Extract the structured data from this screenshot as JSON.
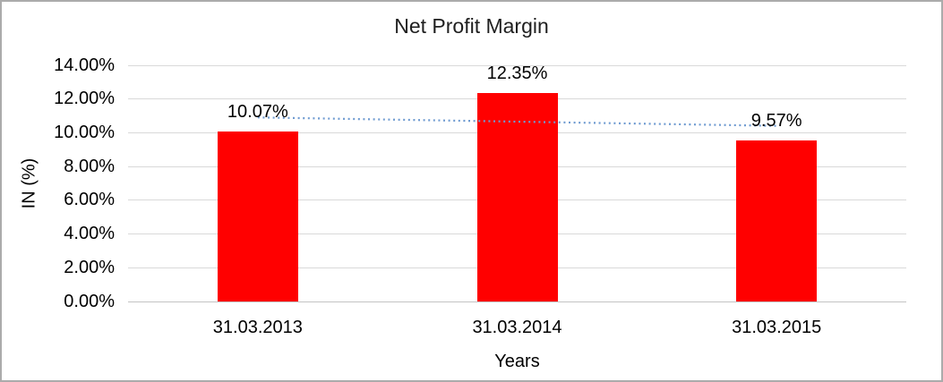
{
  "chart_data": {
    "type": "bar",
    "title": "Net Profit Margin",
    "xlabel": "Years",
    "ylabel": "IN (%)",
    "categories": [
      "31.03.2013",
      "31.03.2014",
      "31.03.2015"
    ],
    "values": [
      10.07,
      12.35,
      9.57
    ],
    "value_labels": [
      "10.07%",
      "12.35%",
      "9.57%"
    ],
    "ylim": [
      0,
      14
    ],
    "ytick_step": 2,
    "ytick_labels": [
      "0.00%",
      "2.00%",
      "4.00%",
      "6.00%",
      "8.00%",
      "10.00%",
      "12.00%",
      "14.00%"
    ],
    "grid": true,
    "legend": false,
    "bar_color": "#ff0000",
    "gridline_color": "#d9d9d9",
    "trendline": {
      "type": "linear",
      "style": "dotted",
      "color": "#6f9bd1",
      "start_value": 10.91,
      "end_value": 10.41
    }
  }
}
